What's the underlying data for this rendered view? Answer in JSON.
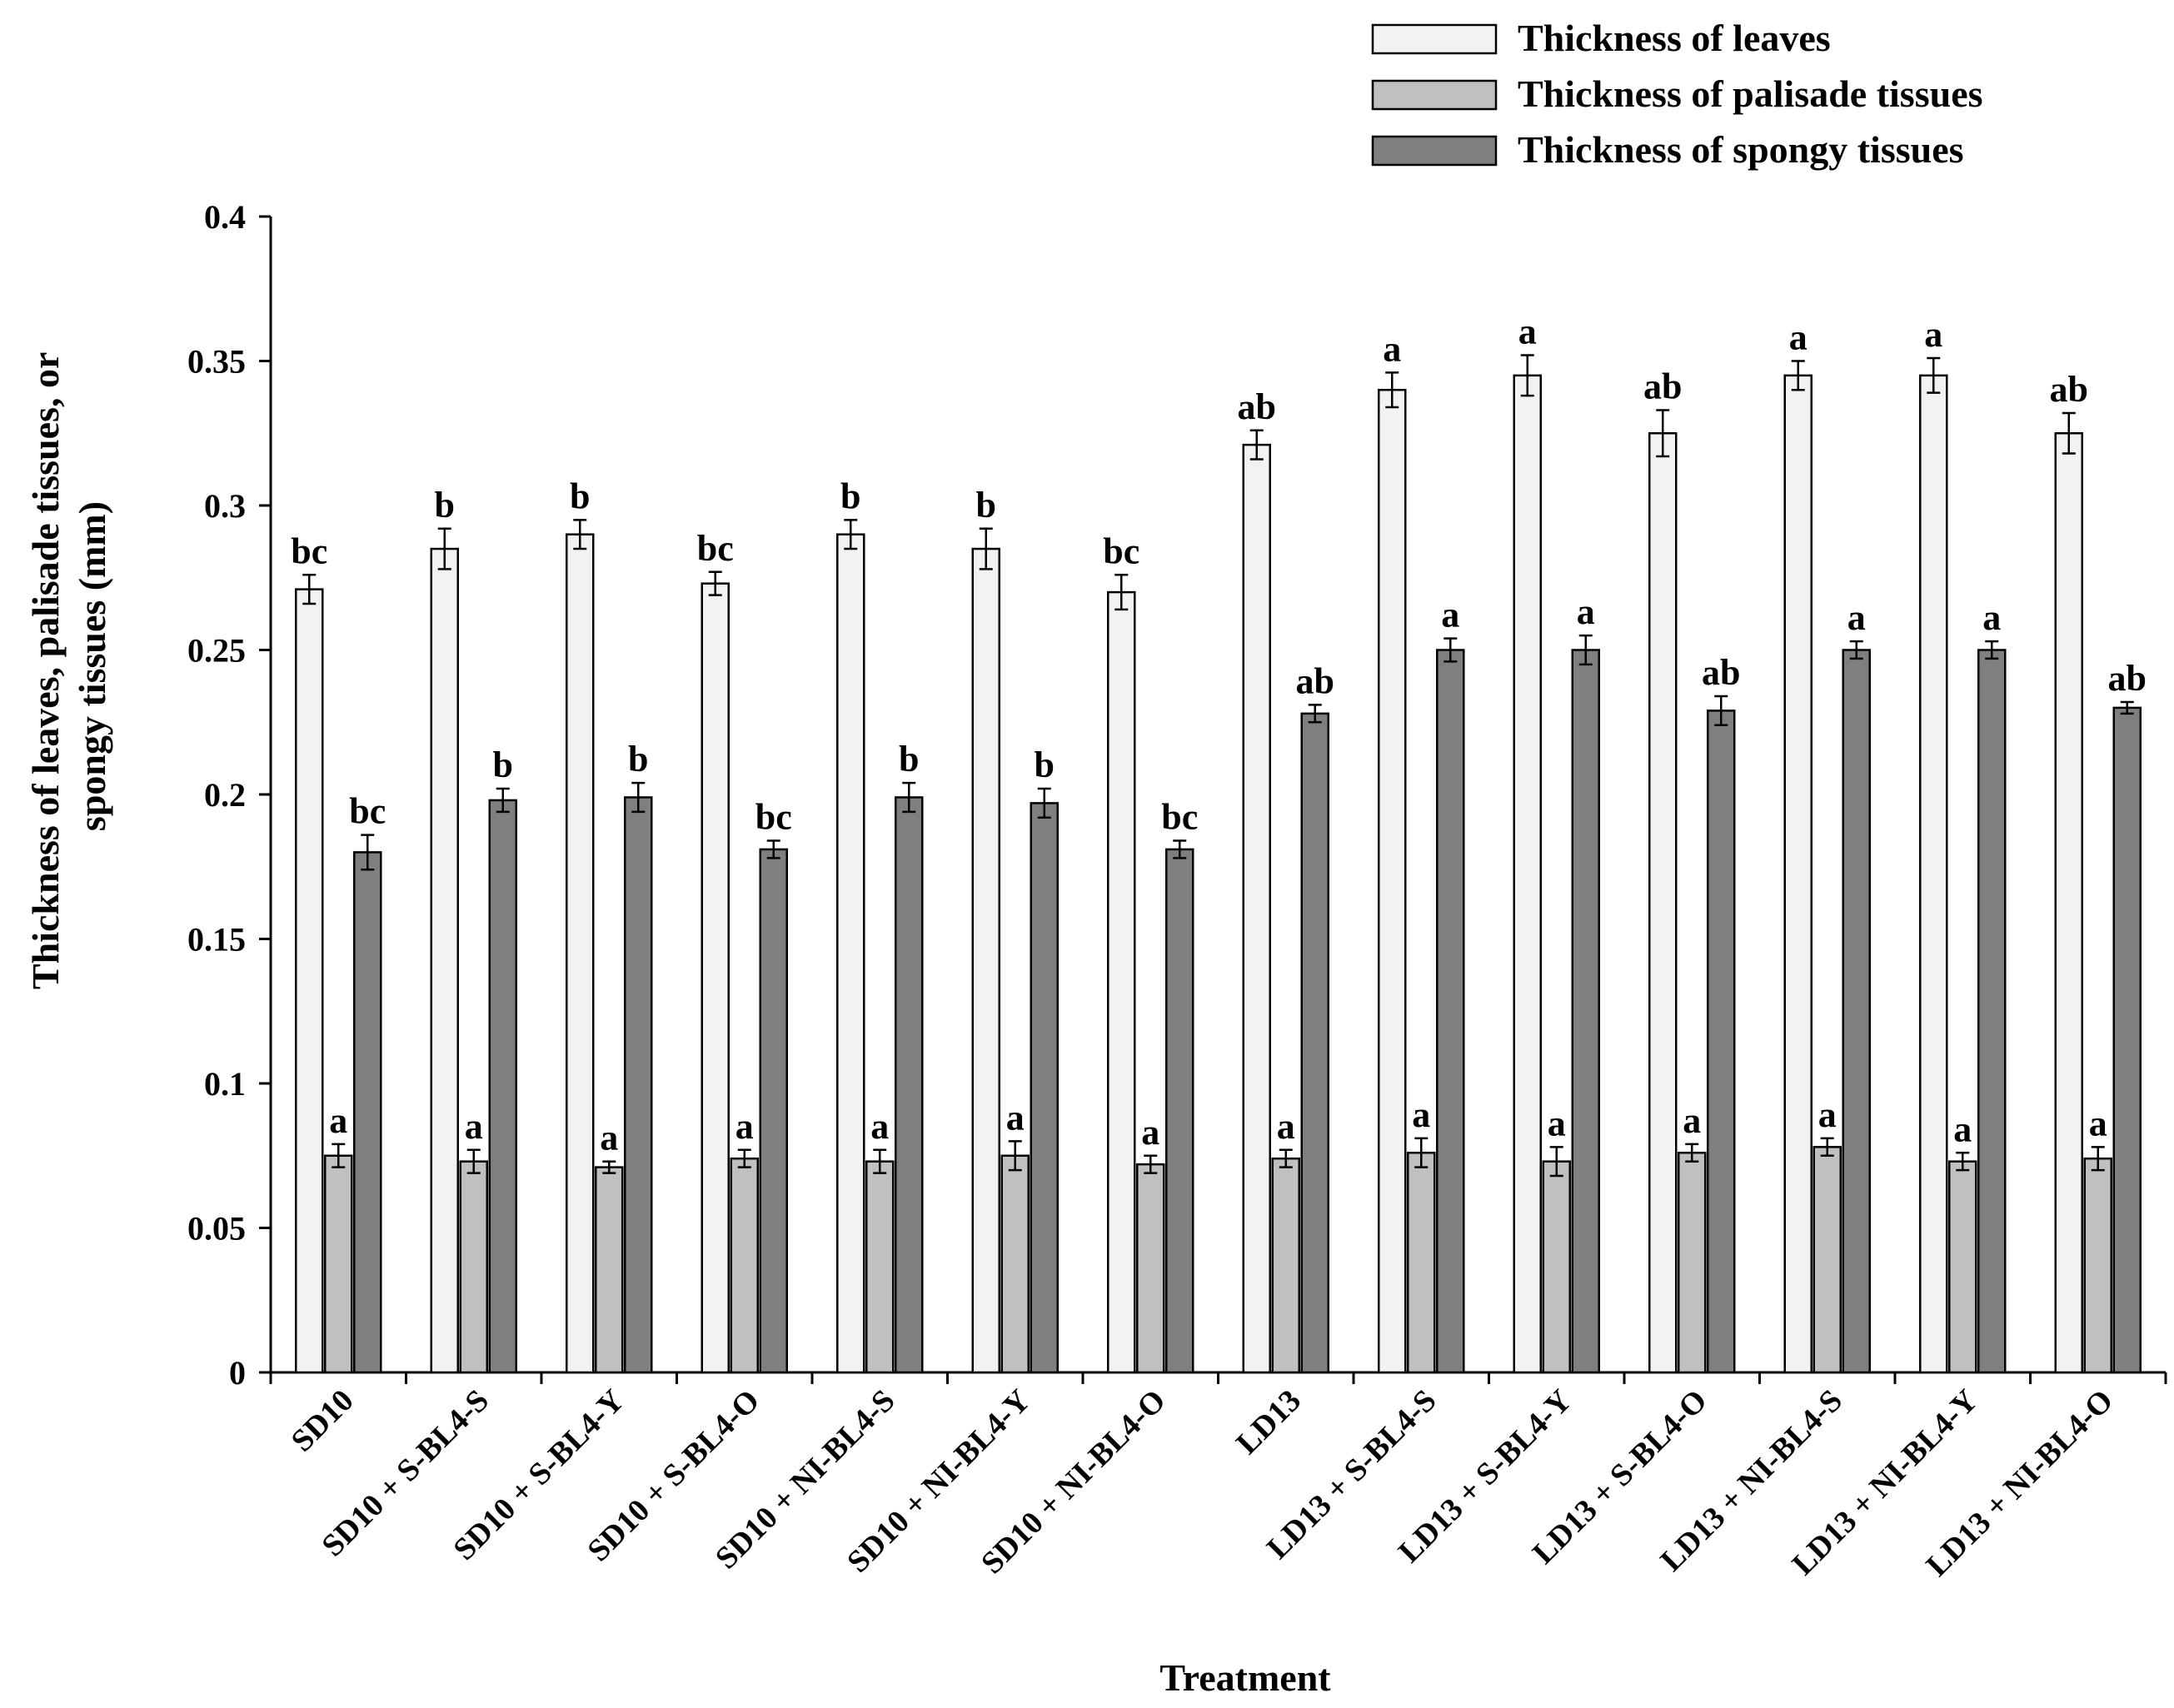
{
  "chart_data": {
    "type": "bar",
    "title": "",
    "xlabel": "Treatment",
    "ylabel_lines": [
      "Thickness of leaves, palisade tissues, or",
      "spongy tissues (mm)"
    ],
    "ylim": [
      0,
      0.4
    ],
    "yticks": [
      0,
      0.05,
      0.1,
      0.15,
      0.2,
      0.25,
      0.3,
      0.35,
      0.4
    ],
    "ytick_labels": [
      "0",
      "0.05",
      "0.1",
      "0.15",
      "0.2",
      "0.25",
      "0.3",
      "0.35",
      "0.4"
    ],
    "legend_position": "top-right",
    "categories": [
      "SD10",
      "SD10 + S-BL4-S",
      "SD10 + S-BL4-Y",
      "SD10 + S-BL4-O",
      "SD10 + NI-BL4-S",
      "SD10 + NI-BL4-Y",
      "SD10 + NI-BL4-O",
      "LD13",
      "LD13 + S-BL4-S",
      "LD13 + S-BL4-Y",
      "LD13 + S-BL4-O",
      "LD13 + NI-BL4-S",
      "LD13 + NI-BL4-Y",
      "LD13 + NI-BL4-O"
    ],
    "series": [
      {
        "name": "Thickness of leaves",
        "color": "#f2f2f2",
        "values": [
          0.271,
          0.285,
          0.29,
          0.273,
          0.29,
          0.285,
          0.27,
          0.321,
          0.34,
          0.345,
          0.325,
          0.345,
          0.345,
          0.325
        ],
        "errors": [
          0.005,
          0.007,
          0.005,
          0.004,
          0.005,
          0.007,
          0.006,
          0.005,
          0.006,
          0.007,
          0.008,
          0.005,
          0.006,
          0.007
        ],
        "labels": [
          "bc",
          "b",
          "b",
          "bc",
          "b",
          "b",
          "bc",
          "ab",
          "a",
          "a",
          "ab",
          "a",
          "a",
          "ab"
        ]
      },
      {
        "name": "Thickness of palisade tissues",
        "color": "#c0c0c0",
        "values": [
          0.075,
          0.073,
          0.071,
          0.074,
          0.073,
          0.075,
          0.072,
          0.074,
          0.076,
          0.073,
          0.076,
          0.078,
          0.073,
          0.074
        ],
        "errors": [
          0.004,
          0.004,
          0.002,
          0.003,
          0.004,
          0.005,
          0.003,
          0.003,
          0.005,
          0.005,
          0.003,
          0.003,
          0.003,
          0.004
        ],
        "labels": [
          "a",
          "a",
          "a",
          "a",
          "a",
          "a",
          "a",
          "a",
          "a",
          "a",
          "a",
          "a",
          "a",
          "a"
        ]
      },
      {
        "name": "Thickness of spongy tissues",
        "color": "#7f7f7f",
        "values": [
          0.18,
          0.198,
          0.199,
          0.181,
          0.199,
          0.197,
          0.181,
          0.228,
          0.25,
          0.25,
          0.229,
          0.25,
          0.25,
          0.23
        ],
        "errors": [
          0.006,
          0.004,
          0.005,
          0.003,
          0.005,
          0.005,
          0.003,
          0.003,
          0.004,
          0.005,
          0.005,
          0.003,
          0.003,
          0.002
        ],
        "labels": [
          "bc",
          "b",
          "b",
          "bc",
          "b",
          "b",
          "bc",
          "ab",
          "a",
          "a",
          "ab",
          "a",
          "a",
          "ab"
        ]
      }
    ]
  }
}
